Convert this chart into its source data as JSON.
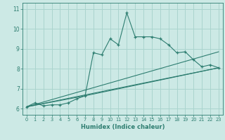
{
  "xlabel": "Humidex (Indice chaleur)",
  "bg_color": "#cce9e5",
  "line_color": "#2d7d70",
  "grid_color": "#aad4ce",
  "xlim": [
    -0.5,
    23.5
  ],
  "ylim": [
    5.7,
    11.3
  ],
  "yticks": [
    6,
    7,
    8,
    9,
    10,
    11
  ],
  "xticks": [
    0,
    1,
    2,
    3,
    4,
    5,
    6,
    7,
    8,
    9,
    10,
    11,
    12,
    13,
    14,
    15,
    16,
    17,
    18,
    19,
    20,
    21,
    22,
    23
  ],
  "series1_x": [
    0,
    1,
    2,
    3,
    4,
    5,
    6,
    7,
    8,
    9,
    10,
    11,
    12,
    13,
    14,
    15,
    16,
    17,
    18,
    19,
    20,
    21,
    22,
    23
  ],
  "series1_y": [
    6.1,
    6.3,
    6.15,
    6.2,
    6.2,
    6.3,
    6.5,
    6.65,
    8.8,
    8.7,
    9.5,
    9.2,
    10.8,
    9.6,
    9.6,
    9.6,
    9.5,
    9.2,
    8.8,
    8.85,
    8.45,
    8.1,
    8.2,
    8.05
  ],
  "series2_x": [
    0,
    23
  ],
  "series2_y": [
    6.1,
    8.85
  ],
  "series3_x": [
    0,
    23
  ],
  "series3_y": [
    6.1,
    8.05
  ],
  "series4_x": [
    0,
    7,
    23
  ],
  "series4_y": [
    6.1,
    6.65,
    8.05
  ]
}
